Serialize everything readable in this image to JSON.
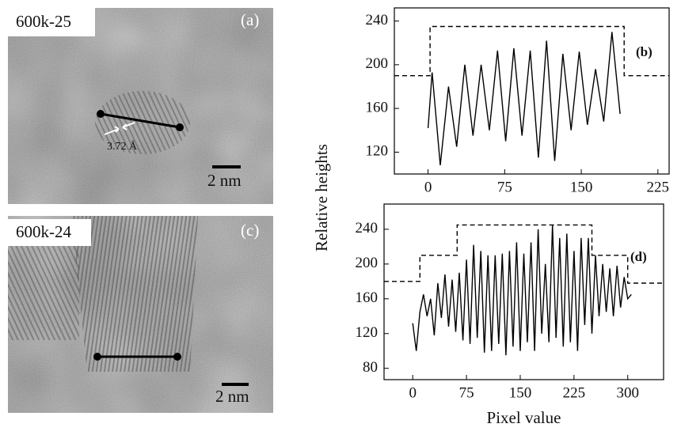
{
  "images": [
    {
      "label": "600k-25",
      "panel": "(a)",
      "spacing": "3.72 Å",
      "scale": "2 nm"
    },
    {
      "label": "600k-24",
      "panel": "(c)",
      "scale": "2 nm"
    }
  ],
  "chart_data": [
    {
      "type": "line",
      "panel": "(b)",
      "ylabel": "Relative heights",
      "xlim": [
        -33,
        236
      ],
      "ylim": [
        100,
        252
      ],
      "xticks": [
        0,
        75,
        150,
        225
      ],
      "yticks": [
        120,
        160,
        200,
        240
      ],
      "series": [
        {
          "color": "#000000",
          "style": "solid",
          "x": [
            0,
            4,
            12,
            20,
            28,
            36,
            44,
            52,
            60,
            68,
            76,
            84,
            92,
            100,
            108,
            116,
            124,
            132,
            140,
            148,
            156,
            164,
            172,
            180,
            188
          ],
          "values": [
            142,
            193,
            108,
            180,
            125,
            200,
            135,
            200,
            140,
            213,
            130,
            215,
            135,
            213,
            115,
            222,
            112,
            210,
            140,
            212,
            145,
            196,
            148,
            230,
            155
          ]
        },
        {
          "color": "#000000",
          "style": "dashed",
          "x": [
            -33,
            2,
            2,
            192,
            192,
            236
          ],
          "values": [
            190,
            190,
            235,
            235,
            190,
            190
          ]
        }
      ]
    },
    {
      "type": "line",
      "panel": "(d)",
      "xlabel": "Pixel value",
      "xlim": [
        -40,
        350
      ],
      "ylim": [
        67,
        269
      ],
      "xticks": [
        0,
        75,
        150,
        225,
        300
      ],
      "yticks": [
        80,
        120,
        160,
        200,
        240
      ],
      "series": [
        {
          "color": "#000000",
          "style": "solid",
          "x": [
            0,
            5,
            10,
            15,
            20,
            25,
            30,
            35,
            40,
            45,
            50,
            55,
            60,
            65,
            70,
            75,
            80,
            85,
            90,
            95,
            100,
            105,
            110,
            115,
            120,
            125,
            130,
            135,
            140,
            145,
            150,
            155,
            160,
            165,
            170,
            175,
            180,
            185,
            190,
            195,
            200,
            205,
            210,
            215,
            220,
            225,
            230,
            235,
            240,
            245,
            250,
            255,
            260,
            265,
            270,
            275,
            280,
            285,
            290,
            295,
            300,
            305
          ],
          "values": [
            132,
            100,
            145,
            165,
            140,
            160,
            118,
            178,
            138,
            188,
            128,
            182,
            122,
            190,
            112,
            205,
            108,
            222,
            115,
            215,
            98,
            210,
            100,
            210,
            108,
            212,
            95,
            215,
            105,
            225,
            100,
            212,
            110,
            225,
            100,
            240,
            120,
            200,
            110,
            245,
            115,
            230,
            105,
            235,
            110,
            215,
            100,
            230,
            130,
            230,
            120,
            210,
            140,
            200,
            145,
            195,
            140,
            198,
            150,
            185,
            160,
            165
          ]
        },
        {
          "color": "#000000",
          "style": "dashed",
          "x": [
            -40,
            10,
            10,
            62,
            62,
            250,
            250,
            300,
            300,
            350
          ],
          "values": [
            180,
            180,
            210,
            210,
            245,
            245,
            210,
            210,
            178,
            178
          ]
        }
      ]
    }
  ]
}
